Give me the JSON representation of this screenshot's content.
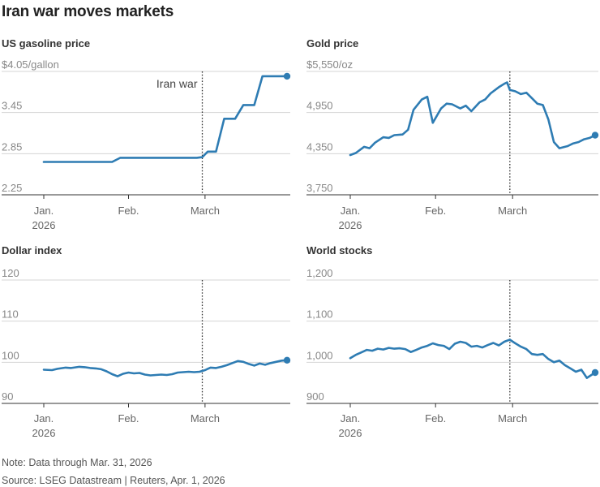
{
  "title": "Iran war moves markets",
  "note": "Note: Data through Mar. 31, 2026",
  "source": "Source: LSEG Datastream | Reuters, Apr. 1, 2026",
  "line_color": "#2e7cb3",
  "event_label": "Iran war",
  "chart_data": [
    {
      "type": "line",
      "title": "US gasoline price",
      "ylim": [
        2.25,
        4.05
      ],
      "yticks": [
        4.05,
        3.45,
        2.85,
        2.25
      ],
      "ytick_labels": [
        "$4.05/gallon",
        "3.45",
        "2.85",
        "2.25"
      ],
      "xlim": [
        0,
        89
      ],
      "xticks": [
        0,
        31,
        59
      ],
      "xtick_labels": [
        "Jan.\n2026",
        "Feb.",
        "March"
      ],
      "event_x": 58,
      "annotation": "Iran war",
      "x": [
        0,
        7,
        14,
        21,
        25,
        28,
        35,
        42,
        49,
        56,
        58,
        60,
        63,
        66,
        70,
        73,
        77,
        80,
        84,
        86,
        89
      ],
      "y": [
        2.73,
        2.73,
        2.73,
        2.73,
        2.73,
        2.79,
        2.79,
        2.79,
        2.79,
        2.79,
        2.8,
        2.88,
        2.88,
        3.36,
        3.36,
        3.56,
        3.56,
        3.98,
        3.98,
        3.98,
        3.98
      ]
    },
    {
      "type": "line",
      "title": "Gold price",
      "ylim": [
        3750,
        5550
      ],
      "yticks": [
        5550,
        4950,
        4350,
        3750
      ],
      "ytick_labels": [
        "$5,550/oz",
        "4,950",
        "4,350",
        "3,750"
      ],
      "xlim": [
        0,
        89
      ],
      "xticks": [
        0,
        31,
        59
      ],
      "xtick_labels": [
        "Jan.\n2026",
        "Feb.",
        "March"
      ],
      "event_x": 58,
      "x": [
        0,
        2,
        5,
        7,
        9,
        12,
        14,
        16,
        19,
        21,
        23,
        26,
        28,
        30,
        33,
        35,
        37,
        40,
        42,
        44,
        47,
        49,
        51,
        54,
        56,
        57,
        58,
        60,
        62,
        64,
        66,
        68,
        70,
        72,
        74,
        76,
        79,
        81,
        83,
        85,
        87,
        89
      ],
      "y": [
        4330,
        4360,
        4450,
        4430,
        4510,
        4590,
        4580,
        4620,
        4630,
        4700,
        4990,
        5140,
        5180,
        4800,
        5010,
        5080,
        5070,
        5010,
        5050,
        4970,
        5100,
        5140,
        5230,
        5320,
        5370,
        5390,
        5280,
        5260,
        5220,
        5240,
        5160,
        5080,
        5060,
        4850,
        4520,
        4430,
        4460,
        4500,
        4520,
        4560,
        4580,
        4620
      ]
    },
    {
      "type": "line",
      "title": "Dollar index",
      "ylim": [
        90,
        120
      ],
      "yticks": [
        120,
        110,
        100,
        90
      ],
      "ytick_labels": [
        "120",
        "110",
        "100",
        "90"
      ],
      "xlim": [
        0,
        89
      ],
      "xticks": [
        0,
        31,
        59
      ],
      "xtick_labels": [
        "Jan.\n2026",
        "Feb.",
        "March"
      ],
      "event_x": 58,
      "x": [
        0,
        3,
        5,
        8,
        10,
        13,
        15,
        17,
        19,
        21,
        23,
        25,
        27,
        29,
        31,
        33,
        35,
        37,
        39,
        41,
        43,
        45,
        47,
        49,
        51,
        53,
        55,
        57,
        59,
        61,
        63,
        65,
        67,
        69,
        71,
        73,
        75,
        77,
        79,
        81,
        83,
        85,
        87,
        89
      ],
      "y": [
        98.2,
        98.1,
        98.4,
        98.7,
        98.6,
        98.9,
        98.8,
        98.6,
        98.5,
        98.3,
        97.8,
        97.1,
        96.6,
        97.2,
        97.5,
        97.3,
        97.4,
        97.0,
        96.8,
        96.9,
        97.0,
        96.9,
        97.1,
        97.5,
        97.6,
        97.7,
        97.6,
        97.7,
        98.1,
        98.7,
        98.6,
        98.9,
        99.3,
        99.8,
        100.3,
        100.1,
        99.6,
        99.2,
        99.7,
        99.4,
        99.8,
        100.1,
        100.4,
        100.5
      ]
    },
    {
      "type": "line",
      "title": "World stocks",
      "ylim": [
        900,
        1200
      ],
      "yticks": [
        1200,
        1100,
        1000,
        900
      ],
      "ytick_labels": [
        "1,200",
        "1,100",
        "1,000",
        "900"
      ],
      "xlim": [
        0,
        89
      ],
      "xticks": [
        0,
        31,
        59
      ],
      "xtick_labels": [
        "Jan.\n2026",
        "Feb.",
        "March"
      ],
      "event_x": 58,
      "x": [
        0,
        2,
        4,
        6,
        8,
        10,
        12,
        14,
        16,
        18,
        20,
        22,
        24,
        26,
        28,
        30,
        32,
        34,
        36,
        38,
        40,
        42,
        44,
        46,
        48,
        50,
        52,
        54,
        56,
        58,
        60,
        62,
        64,
        66,
        68,
        70,
        72,
        74,
        76,
        78,
        80,
        82,
        84,
        86,
        89
      ],
      "y": [
        1010,
        1018,
        1024,
        1030,
        1028,
        1033,
        1031,
        1035,
        1033,
        1034,
        1032,
        1025,
        1030,
        1036,
        1040,
        1046,
        1042,
        1040,
        1032,
        1045,
        1050,
        1047,
        1038,
        1040,
        1036,
        1042,
        1047,
        1041,
        1050,
        1055,
        1046,
        1038,
        1032,
        1020,
        1018,
        1020,
        1008,
        1000,
        1004,
        993,
        985,
        977,
        982,
        962,
        975
      ]
    }
  ]
}
